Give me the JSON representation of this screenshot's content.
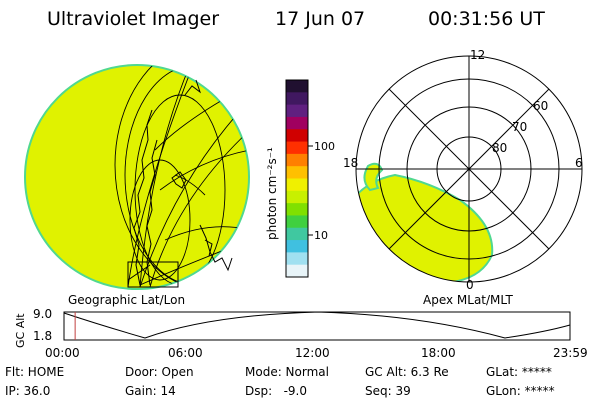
{
  "header": {
    "instrument": "Ultraviolet Imager",
    "date": "17 Jun 07",
    "time": "00:31:56 UT"
  },
  "colors": {
    "aurora_fill": "#e0f200",
    "aurora_edge": "#50d890"
  },
  "colorbar": {
    "unit_label": "photon cm⁻²s⁻¹",
    "ticks": [
      "100",
      "10"
    ],
    "scale": "log",
    "colors_top_to_bottom": [
      "#201030",
      "#401860",
      "#602080",
      "#a00060",
      "#d00000",
      "#ff3000",
      "#ff8000",
      "#ffc000",
      "#f0f000",
      "#c8f000",
      "#80e000",
      "#40d040",
      "#40c8a0",
      "#40c0e0",
      "#a0e0f0",
      "#e8f4f8"
    ]
  },
  "geographic_panel": {
    "label": "Geographic Lat/Lon"
  },
  "polar_panel": {
    "label": "Apex MLat/MLT",
    "mlt_labels": [
      "12",
      "18",
      "6",
      "0"
    ],
    "lat_labels": [
      "60",
      "70",
      "80"
    ]
  },
  "altitude_plot": {
    "ylabel": "GC Alt",
    "yticks": [
      "9.0",
      "1.8"
    ],
    "xticks": [
      "00:00",
      "06:00",
      "12:00",
      "18:00",
      "23:59"
    ],
    "current_time_fraction": 0.022,
    "marker_color": "#c04040"
  },
  "status": {
    "row1": [
      "Flt: HOME",
      "Door: Open",
      "Mode: Normal",
      "GC Alt: 6.3 Re",
      "GLat: *****"
    ],
    "row2": [
      "IP: 36.0",
      "Gain: 14",
      "Dsp:   -9.0",
      "Seq: 39",
      "GLon: *****"
    ]
  }
}
